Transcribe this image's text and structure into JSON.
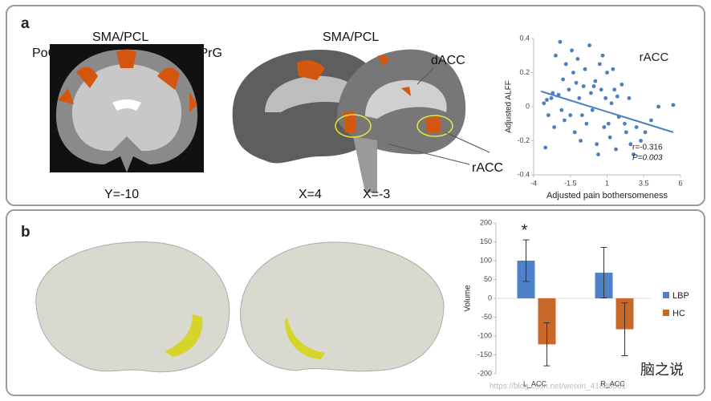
{
  "figure": {
    "panels": [
      "a",
      "b"
    ],
    "brain_labels": {
      "pog_left": "PoG/PrG",
      "sma_coronal": "SMA/PCL",
      "pog_right": "PoG/PrG",
      "sma_sagittal": "SMA/PCL",
      "dacc": "dACC",
      "racc": "rACC"
    },
    "slices": [
      "Y=-10",
      "X=4",
      "X=-3"
    ],
    "watermark": [
      "脑之说",
      "https://blog.csdn.net/weixin_41880581"
    ]
  },
  "chart_data": [
    {
      "type": "scatter",
      "title": "rACC",
      "xlabel": "Adjusted pain bothersomeness",
      "ylabel": "Adjusted ALFF",
      "xlim": [
        -4,
        6
      ],
      "xticks": [
        -4,
        -1.5,
        1,
        3.5,
        6
      ],
      "ylim": [
        -0.4,
        0.4
      ],
      "yticks": [
        -0.4,
        -0.2,
        0,
        0.2,
        0.4
      ],
      "color": "#4a7fc1",
      "x": [
        -3.3,
        -3.2,
        -3,
        -2.8,
        -2.6,
        -2.5,
        -2.3,
        -2.2,
        -2,
        -1.9,
        -1.8,
        -1.6,
        -1.5,
        -1.3,
        -1.2,
        -1,
        -0.9,
        -0.8,
        -0.6,
        -0.5,
        -0.4,
        -0.2,
        -0.1,
        0,
        0.2,
        0.3,
        0.5,
        0.6,
        0.8,
        0.9,
        1,
        1.2,
        1.3,
        1.5,
        1.6,
        1.8,
        2,
        2.2,
        2.5,
        2.8,
        3,
        3.3,
        3.6,
        4,
        4.5,
        5.5,
        -2.7,
        -2.1,
        -1.4,
        -0.7,
        0.1,
        0.7,
        1.1,
        1.7,
        2.3,
        -3.1,
        -1.1,
        0.4,
        1.4,
        2.6
      ],
      "y": [
        0.02,
        -0.24,
        -0.05,
        0.05,
        -0.12,
        0.3,
        0.07,
        0.38,
        0.16,
        -0.08,
        0.25,
        0.1,
        -0.05,
        0.2,
        -0.15,
        0.28,
        0.05,
        -0.2,
        0.12,
        0.22,
        -0.1,
        0.36,
        0.08,
        -0.02,
        0.15,
        -0.22,
        0.25,
        0.1,
        -0.12,
        0.05,
        0.2,
        -0.18,
        0.02,
        0.1,
        -0.25,
        -0.06,
        0.13,
        -0.1,
        0.05,
        -0.28,
        -0.12,
        -0.2,
        -0.15,
        -0.08,
        0.0,
        0.01,
        0.08,
        -0.02,
        0.33,
        -0.05,
        0.12,
        0.3,
        -0.1,
        0.06,
        -0.15,
        0.04,
        0.14,
        -0.28,
        0.22,
        -0.22
      ],
      "trend": {
        "x": [
          -3.5,
          5.5
        ],
        "y": [
          0.09,
          -0.15
        ]
      },
      "annotations": [
        "r=-0.316",
        "P=0.003"
      ]
    },
    {
      "type": "bar",
      "ylabel": "Volume",
      "categories": [
        "L_ACC",
        "R_ACC"
      ],
      "ylim": [
        -200,
        200
      ],
      "yticks": [
        -200,
        -150,
        -100,
        -50,
        0,
        50,
        100,
        150,
        200
      ],
      "series": [
        {
          "name": "LBP",
          "color": "#4f81c7",
          "values": [
            100,
            68
          ],
          "errors": [
            55,
            67
          ]
        },
        {
          "name": "HC",
          "color": "#c8692a",
          "values": [
            -122,
            -82
          ],
          "errors": [
            57,
            70
          ]
        }
      ],
      "annotations": [
        "*"
      ],
      "legend": "right"
    }
  ]
}
